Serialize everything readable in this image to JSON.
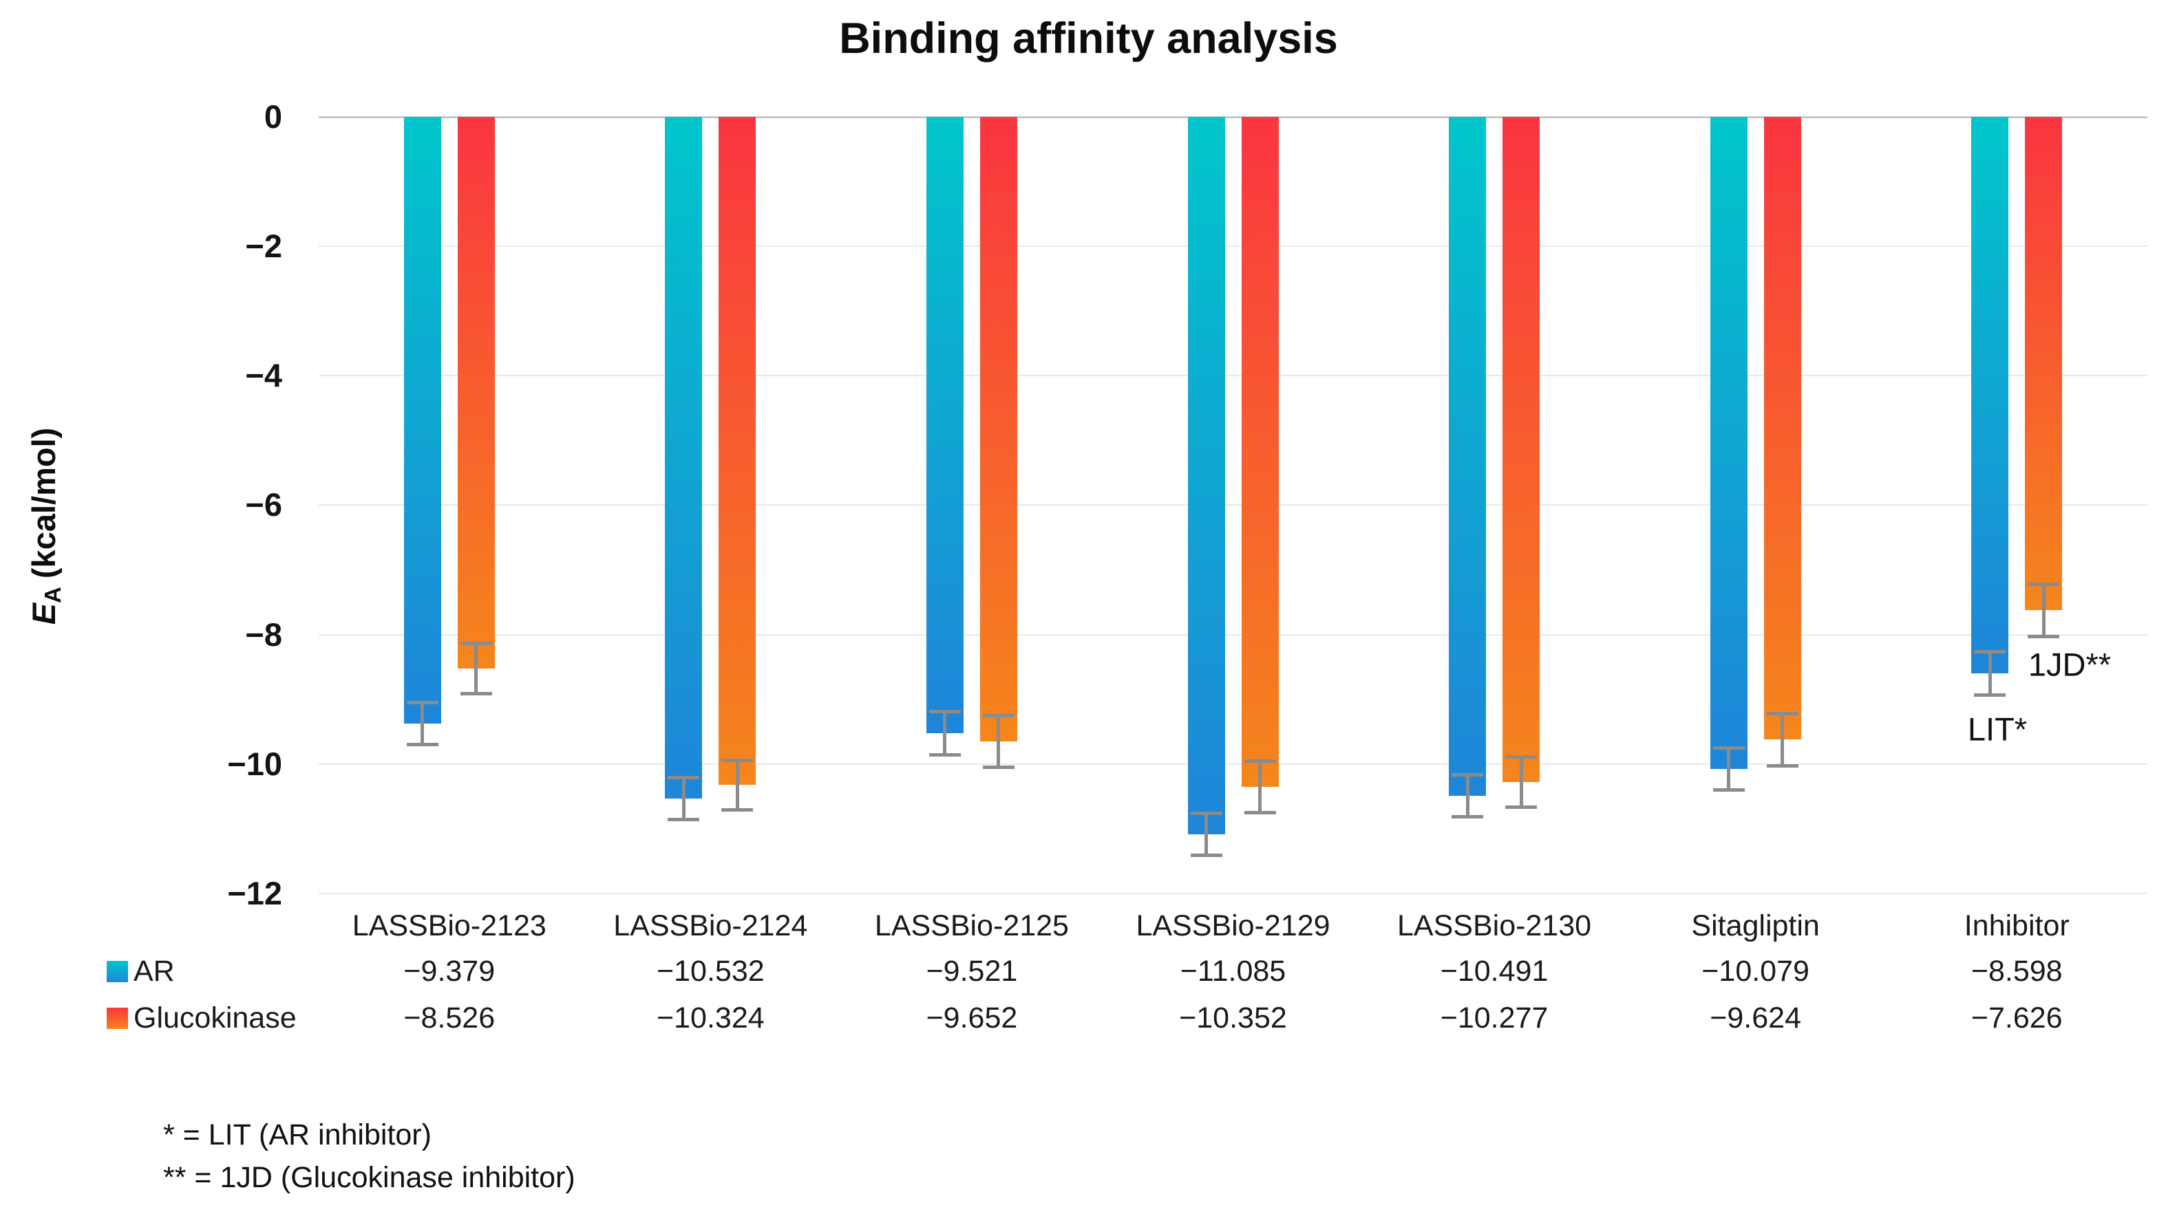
{
  "title": "Binding affinity analysis",
  "y_axis": {
    "symbol": "E",
    "subscript": "A",
    "unit": "(kcal/mol)"
  },
  "annotations": [
    {
      "text": "1JD**",
      "target": "Inhibitor-Glucokinase-bar"
    },
    {
      "text": "LIT*",
      "target": "Inhibitor-AR-bar"
    }
  ],
  "footnotes": [
    "* = LIT (AR inhibitor)",
    "** = 1JD (Glucokinase inhibitor)"
  ],
  "colors": {
    "ar_top": "#00C6CB",
    "ar_bottom": "#1F85D9",
    "glucokinase_top": "#FA3540",
    "glucokinase_bottom": "#F5861C",
    "error_bar": "#8b8b8b",
    "gridline_zero": "#c6c6c6",
    "gridline": "#e9e9e9"
  },
  "chart_data": {
    "type": "bar",
    "title": "Binding affinity analysis",
    "xlabel": "",
    "ylabel": "EA (kcal/mol)",
    "categories": [
      "LASSBio-2123",
      "LASSBio-2124",
      "LASSBio-2125",
      "LASSBio-2129",
      "LASSBio-2130",
      "Sitagliptin",
      "Inhibitor"
    ],
    "series": [
      {
        "name": "AR",
        "values": [
          -9.379,
          -10.532,
          -9.521,
          -11.085,
          -10.491,
          -10.079,
          -8.598
        ],
        "errors_estimated": [
          0.32,
          0.32,
          0.33,
          0.32,
          0.32,
          0.32,
          0.33
        ]
      },
      {
        "name": "Glucokinase",
        "values": [
          -8.526,
          -10.324,
          -9.652,
          -10.352,
          -10.277,
          -9.624,
          -7.626
        ],
        "errors_estimated": [
          0.38,
          0.38,
          0.39,
          0.39,
          0.38,
          0.4,
          0.4
        ]
      }
    ],
    "yticks": [
      0,
      -2,
      -4,
      -6,
      -8,
      -10,
      -12
    ],
    "ylim": [
      0,
      -12
    ],
    "grid": "horizontal",
    "legend_position": "bottom-left-of-value-table",
    "value_table_rows": [
      "AR",
      "Glucokinase"
    ]
  }
}
